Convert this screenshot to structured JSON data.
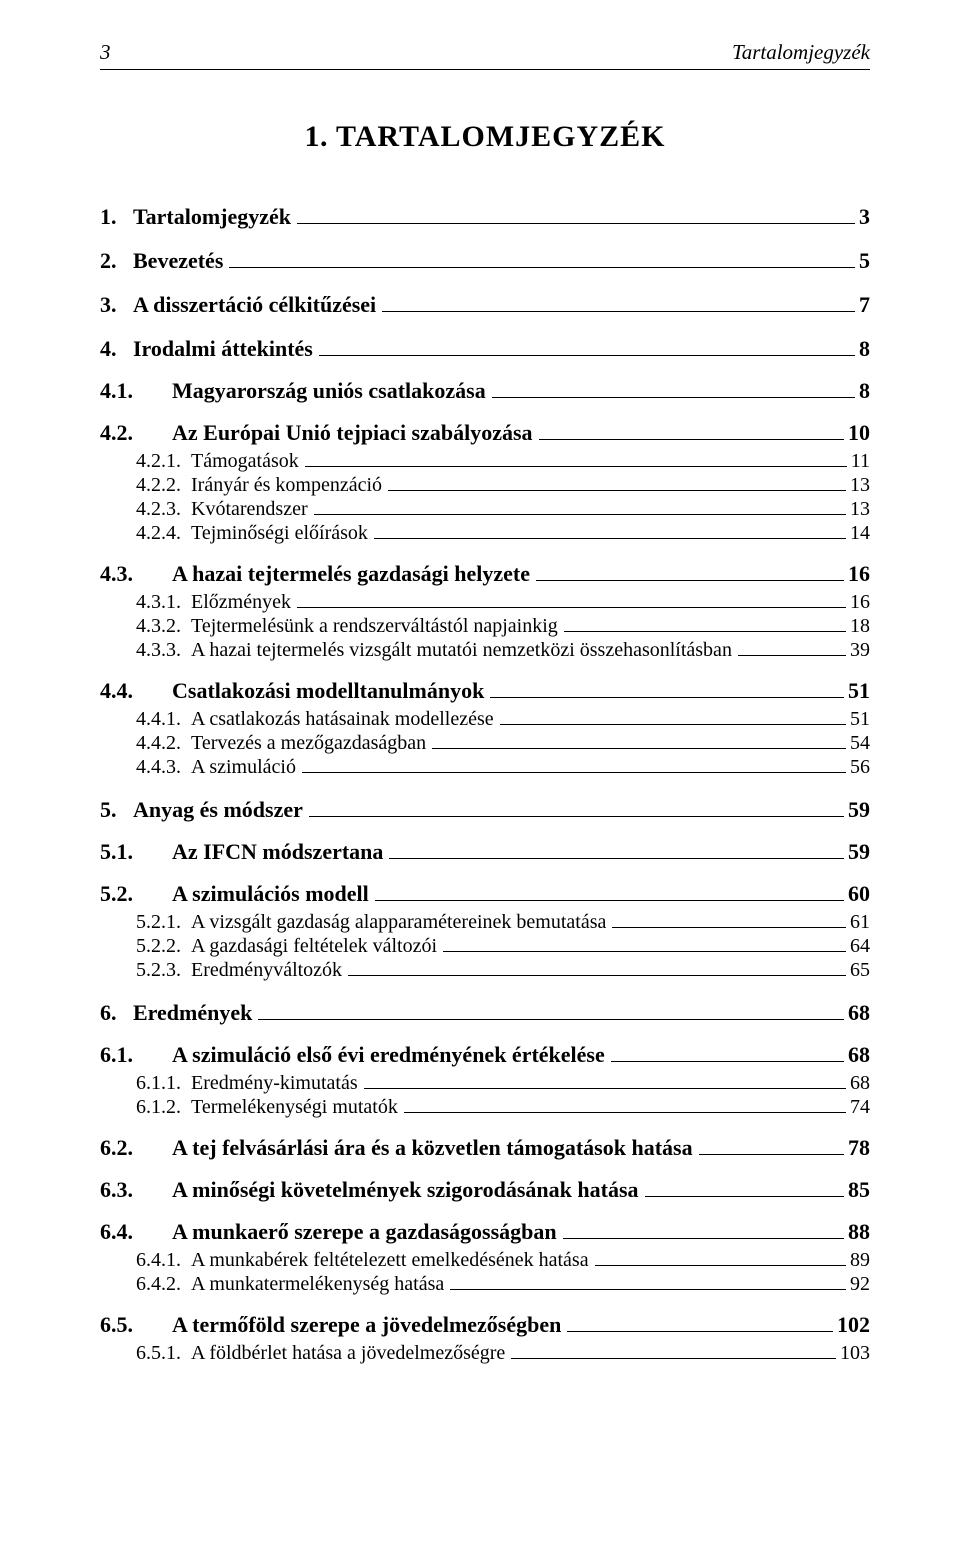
{
  "header": {
    "page_number": "3",
    "running_title": "Tartalomjegyzék"
  },
  "title_prefix": "1. ",
  "title_word": "TARTALOMJEGYZÉK",
  "toc": [
    {
      "level": 1,
      "num": "1.",
      "text": "Tartalomjegyzék",
      "page": "3"
    },
    {
      "level": 1,
      "num": "2.",
      "text": "Bevezetés",
      "page": "5"
    },
    {
      "level": 1,
      "num": "3.",
      "text": "A disszertáció célkitűzései",
      "page": "7"
    },
    {
      "level": 1,
      "num": "4.",
      "text": "Irodalmi áttekintés",
      "page": "8"
    },
    {
      "level": 2,
      "num": "4.1.",
      "text": "Magyarország uniós csatlakozása",
      "page": "8"
    },
    {
      "level": 2,
      "num": "4.2.",
      "text": "Az Európai Unió tejpiaci szabályozása",
      "page": "10"
    },
    {
      "level": 3,
      "num": "4.2.1.",
      "text": "Támogatások",
      "page": "11"
    },
    {
      "level": 3,
      "num": "4.2.2.",
      "text": "Irányár és kompenzáció",
      "page": "13"
    },
    {
      "level": 3,
      "num": "4.2.3.",
      "text": "Kvótarendszer",
      "page": "13"
    },
    {
      "level": 3,
      "num": "4.2.4.",
      "text": "Tejminőségi előírások",
      "page": "14"
    },
    {
      "level": 2,
      "num": "4.3.",
      "text": "A hazai tejtermelés gazdasági helyzete",
      "page": "16"
    },
    {
      "level": 3,
      "num": "4.3.1.",
      "text": "Előzmények",
      "page": "16"
    },
    {
      "level": 3,
      "num": "4.3.2.",
      "text": "Tejtermelésünk a rendszerváltástól napjainkig",
      "page": "18"
    },
    {
      "level": 3,
      "num": "4.3.3.",
      "text": "A hazai tejtermelés vizsgált mutatói nemzetközi összehasonlításban",
      "page": "39"
    },
    {
      "level": 2,
      "num": "4.4.",
      "text": "Csatlakozási modelltanulmányok",
      "page": "51"
    },
    {
      "level": 3,
      "num": "4.4.1.",
      "text": "A csatlakozás hatásainak modellezése",
      "page": "51"
    },
    {
      "level": 3,
      "num": "4.4.2.",
      "text": "Tervezés a mezőgazdaságban",
      "page": "54"
    },
    {
      "level": 3,
      "num": "4.4.3.",
      "text": "A szimuláció",
      "page": "56"
    },
    {
      "level": 1,
      "num": "5.",
      "text": "Anyag és módszer",
      "page": "59"
    },
    {
      "level": 2,
      "num": "5.1.",
      "text": "Az IFCN módszertana",
      "page": "59"
    },
    {
      "level": 2,
      "num": "5.2.",
      "text": "A szimulációs modell",
      "page": "60"
    },
    {
      "level": 3,
      "num": "5.2.1.",
      "text": "A vizsgált gazdaság alapparamétereinek bemutatása",
      "page": "61"
    },
    {
      "level": 3,
      "num": "5.2.2.",
      "text": "A gazdasági feltételek változói",
      "page": "64"
    },
    {
      "level": 3,
      "num": "5.2.3.",
      "text": "Eredményváltozók",
      "page": "65"
    },
    {
      "level": 1,
      "num": "6.",
      "text": "Eredmények",
      "page": "68"
    },
    {
      "level": 2,
      "num": "6.1.",
      "text": "A szimuláció első évi eredményének értékelése",
      "page": "68"
    },
    {
      "level": 3,
      "num": "6.1.1.",
      "text": "Eredmény-kimutatás",
      "page": "68"
    },
    {
      "level": 3,
      "num": "6.1.2.",
      "text": "Termelékenységi mutatók",
      "page": "74"
    },
    {
      "level": 2,
      "num": "6.2.",
      "text": "A tej felvásárlási ára és a közvetlen támogatások hatása",
      "page": "78"
    },
    {
      "level": 2,
      "num": "6.3.",
      "text": "A minőségi követelmények szigorodásának hatása",
      "page": "85"
    },
    {
      "level": 2,
      "num": "6.4.",
      "text": "A munkaerő szerepe a gazdaságosságban",
      "page": "88"
    },
    {
      "level": 3,
      "num": "6.4.1.",
      "text": "A munkabérek feltételezett emelkedésének hatása",
      "page": "89"
    },
    {
      "level": 3,
      "num": "6.4.2.",
      "text": "A munkatermelékenység hatása",
      "page": "92"
    },
    {
      "level": 2,
      "num": "6.5.",
      "text": "A termőföld szerepe a jövedelmezőségben",
      "page": "102"
    },
    {
      "level": 3,
      "num": "6.5.1.",
      "text": "A földbérlet hatása a jövedelmezőségre",
      "page": "103"
    }
  ]
}
